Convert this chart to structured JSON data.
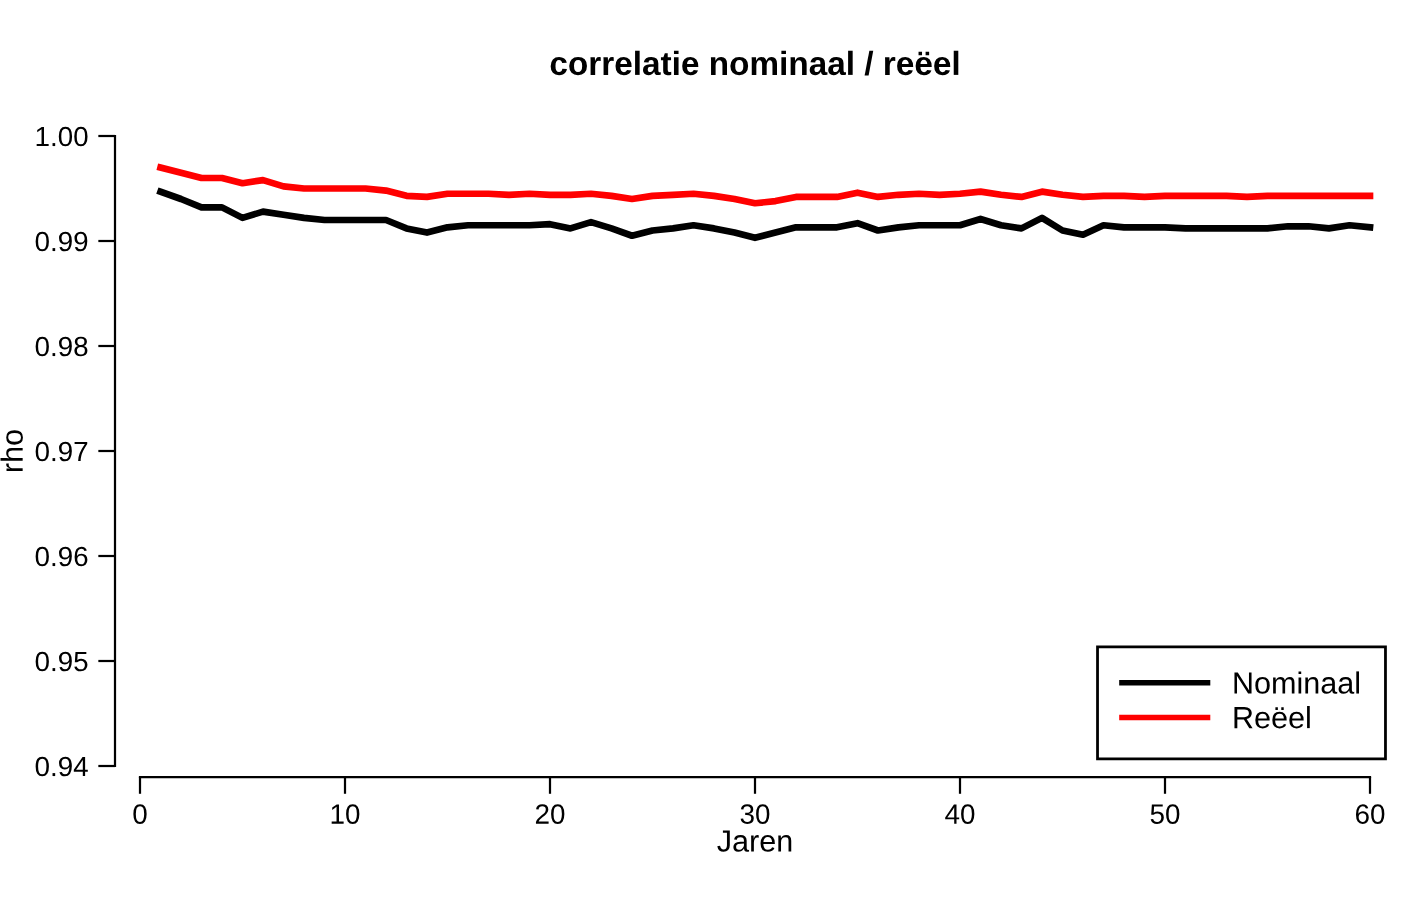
{
  "chart_data": {
    "type": "line",
    "title": "correlatie nominaal / reëel",
    "xlabel": "Jaren",
    "ylabel": "rho",
    "x": [
      1,
      2,
      3,
      4,
      5,
      6,
      7,
      8,
      9,
      10,
      11,
      12,
      13,
      14,
      15,
      16,
      17,
      18,
      19,
      20,
      21,
      22,
      23,
      24,
      25,
      26,
      27,
      28,
      29,
      30,
      31,
      32,
      33,
      34,
      35,
      36,
      37,
      38,
      39,
      40,
      41,
      42,
      43,
      44,
      45,
      46,
      47,
      48,
      49,
      50,
      51,
      52,
      53,
      54,
      55,
      56,
      57,
      58,
      59,
      60
    ],
    "series": [
      {
        "name": "Nominaal",
        "color": "#000000",
        "values": [
          0.9947,
          0.994,
          0.9932,
          0.9932,
          0.9922,
          0.9928,
          0.9925,
          0.9922,
          0.992,
          0.992,
          0.992,
          0.992,
          0.9912,
          0.9908,
          0.9913,
          0.9915,
          0.9915,
          0.9915,
          0.9915,
          0.9916,
          0.9912,
          0.9918,
          0.9912,
          0.9905,
          0.991,
          0.9912,
          0.9915,
          0.9912,
          0.9908,
          0.9903,
          0.9908,
          0.9913,
          0.9913,
          0.9913,
          0.9917,
          0.991,
          0.9913,
          0.9915,
          0.9915,
          0.9915,
          0.9921,
          0.9915,
          0.9912,
          0.9922,
          0.991,
          0.9906,
          0.9915,
          0.9913,
          0.9913,
          0.9913,
          0.9912,
          0.9912,
          0.9912,
          0.9912,
          0.9912,
          0.9914,
          0.9914,
          0.9912,
          0.9915,
          0.9913
        ]
      },
      {
        "name": "Reëel",
        "color": "#ff0000",
        "values": [
          0.997,
          0.9965,
          0.996,
          0.996,
          0.9955,
          0.9958,
          0.9952,
          0.995,
          0.995,
          0.995,
          0.995,
          0.9948,
          0.9943,
          0.9942,
          0.9945,
          0.9945,
          0.9945,
          0.9944,
          0.9945,
          0.9944,
          0.9944,
          0.9945,
          0.9943,
          0.994,
          0.9943,
          0.9944,
          0.9945,
          0.9943,
          0.994,
          0.9936,
          0.9938,
          0.9942,
          0.9942,
          0.9942,
          0.9946,
          0.9942,
          0.9944,
          0.9945,
          0.9944,
          0.9945,
          0.9947,
          0.9944,
          0.9942,
          0.9947,
          0.9944,
          0.9942,
          0.9943,
          0.9943,
          0.9942,
          0.9943,
          0.9943,
          0.9943,
          0.9943,
          0.9942,
          0.9943,
          0.9943,
          0.9943,
          0.9943,
          0.9943,
          0.9943
        ]
      }
    ],
    "xlim": [
      0,
      60
    ],
    "ylim": [
      0.94,
      1.0
    ],
    "xticks": [
      0,
      10,
      20,
      30,
      40,
      50,
      60
    ],
    "yticks": [
      0.94,
      0.95,
      0.96,
      0.97,
      0.98,
      0.99,
      {
        "value": 1.0,
        "label": "1.00"
      }
    ],
    "grid": false,
    "legend": "bottom right",
    "marker": "none",
    "line_style": "solid"
  }
}
